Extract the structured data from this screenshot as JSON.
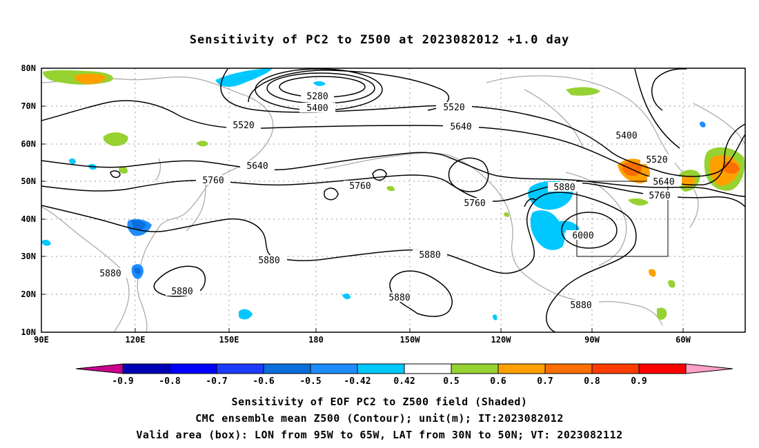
{
  "title": "Sensitivity of PC2 to Z500 at 2023082012 +1.0 day",
  "lat_labels": [
    "80N",
    "70N",
    "60N",
    "50N",
    "40N",
    "30N",
    "20N",
    "10N"
  ],
  "lon_labels": [
    "90E",
    "120E",
    "150E",
    "180",
    "150W",
    "120W",
    "90W",
    "60W"
  ],
  "contour_labels": [
    "5280",
    "5400",
    "5520",
    "5520",
    "5640",
    "5640",
    "5760",
    "5760",
    "5760",
    "5880",
    "5880",
    "5880",
    "5880",
    "5880",
    "5880",
    "5880",
    "6000",
    "5400",
    "5520",
    "5640",
    "5760"
  ],
  "colorbar": {
    "labels": [
      "-0.9",
      "-0.8",
      "-0.7",
      "-0.6",
      "-0.5",
      "-0.42",
      "0.42",
      "0.5",
      "0.6",
      "0.7",
      "0.8",
      "0.9"
    ],
    "colors": [
      "#c8008c",
      "#0000b4",
      "#0000ff",
      "#1e3cff",
      "#0a6edc",
      "#1e8cff",
      "#00c8ff",
      "#ffffff",
      "#96d232",
      "#ffa000",
      "#ff6e00",
      "#ff3c00",
      "#ff0000",
      "#ffa0c8"
    ]
  },
  "captions": [
    "Sensitivity of EOF PC2 to Z500 field (Shaded)",
    "CMC ensemble mean Z500 (Contour); unit(m); IT:2023082012",
    "Valid area (box): LON from 95W to 65W, LAT from 30N to 50N; VT: 2023082112"
  ],
  "valid_area": {
    "lon_min": "95W",
    "lon_max": "65W",
    "lat_min": "30N",
    "lat_max": "50N"
  }
}
